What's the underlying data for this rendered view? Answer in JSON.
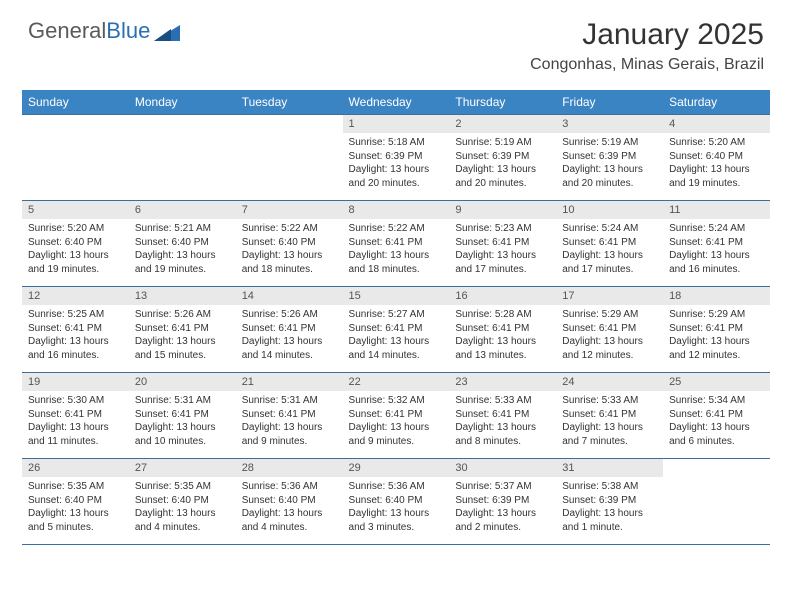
{
  "logo": {
    "text1": "General",
    "text2": "Blue"
  },
  "title": "January 2025",
  "location": "Congonhas, Minas Gerais, Brazil",
  "header_bg": "#3b84c4",
  "header_fg": "#ffffff",
  "daynum_bg": "#e9e9e9",
  "border_color": "#3b6e9a",
  "weekdays": [
    "Sunday",
    "Monday",
    "Tuesday",
    "Wednesday",
    "Thursday",
    "Friday",
    "Saturday"
  ],
  "weeks": [
    [
      {
        "n": "",
        "sr": "",
        "ss": "",
        "dl": ""
      },
      {
        "n": "",
        "sr": "",
        "ss": "",
        "dl": ""
      },
      {
        "n": "",
        "sr": "",
        "ss": "",
        "dl": ""
      },
      {
        "n": "1",
        "sr": "Sunrise: 5:18 AM",
        "ss": "Sunset: 6:39 PM",
        "dl": "Daylight: 13 hours and 20 minutes."
      },
      {
        "n": "2",
        "sr": "Sunrise: 5:19 AM",
        "ss": "Sunset: 6:39 PM",
        "dl": "Daylight: 13 hours and 20 minutes."
      },
      {
        "n": "3",
        "sr": "Sunrise: 5:19 AM",
        "ss": "Sunset: 6:39 PM",
        "dl": "Daylight: 13 hours and 20 minutes."
      },
      {
        "n": "4",
        "sr": "Sunrise: 5:20 AM",
        "ss": "Sunset: 6:40 PM",
        "dl": "Daylight: 13 hours and 19 minutes."
      }
    ],
    [
      {
        "n": "5",
        "sr": "Sunrise: 5:20 AM",
        "ss": "Sunset: 6:40 PM",
        "dl": "Daylight: 13 hours and 19 minutes."
      },
      {
        "n": "6",
        "sr": "Sunrise: 5:21 AM",
        "ss": "Sunset: 6:40 PM",
        "dl": "Daylight: 13 hours and 19 minutes."
      },
      {
        "n": "7",
        "sr": "Sunrise: 5:22 AM",
        "ss": "Sunset: 6:40 PM",
        "dl": "Daylight: 13 hours and 18 minutes."
      },
      {
        "n": "8",
        "sr": "Sunrise: 5:22 AM",
        "ss": "Sunset: 6:41 PM",
        "dl": "Daylight: 13 hours and 18 minutes."
      },
      {
        "n": "9",
        "sr": "Sunrise: 5:23 AM",
        "ss": "Sunset: 6:41 PM",
        "dl": "Daylight: 13 hours and 17 minutes."
      },
      {
        "n": "10",
        "sr": "Sunrise: 5:24 AM",
        "ss": "Sunset: 6:41 PM",
        "dl": "Daylight: 13 hours and 17 minutes."
      },
      {
        "n": "11",
        "sr": "Sunrise: 5:24 AM",
        "ss": "Sunset: 6:41 PM",
        "dl": "Daylight: 13 hours and 16 minutes."
      }
    ],
    [
      {
        "n": "12",
        "sr": "Sunrise: 5:25 AM",
        "ss": "Sunset: 6:41 PM",
        "dl": "Daylight: 13 hours and 16 minutes."
      },
      {
        "n": "13",
        "sr": "Sunrise: 5:26 AM",
        "ss": "Sunset: 6:41 PM",
        "dl": "Daylight: 13 hours and 15 minutes."
      },
      {
        "n": "14",
        "sr": "Sunrise: 5:26 AM",
        "ss": "Sunset: 6:41 PM",
        "dl": "Daylight: 13 hours and 14 minutes."
      },
      {
        "n": "15",
        "sr": "Sunrise: 5:27 AM",
        "ss": "Sunset: 6:41 PM",
        "dl": "Daylight: 13 hours and 14 minutes."
      },
      {
        "n": "16",
        "sr": "Sunrise: 5:28 AM",
        "ss": "Sunset: 6:41 PM",
        "dl": "Daylight: 13 hours and 13 minutes."
      },
      {
        "n": "17",
        "sr": "Sunrise: 5:29 AM",
        "ss": "Sunset: 6:41 PM",
        "dl": "Daylight: 13 hours and 12 minutes."
      },
      {
        "n": "18",
        "sr": "Sunrise: 5:29 AM",
        "ss": "Sunset: 6:41 PM",
        "dl": "Daylight: 13 hours and 12 minutes."
      }
    ],
    [
      {
        "n": "19",
        "sr": "Sunrise: 5:30 AM",
        "ss": "Sunset: 6:41 PM",
        "dl": "Daylight: 13 hours and 11 minutes."
      },
      {
        "n": "20",
        "sr": "Sunrise: 5:31 AM",
        "ss": "Sunset: 6:41 PM",
        "dl": "Daylight: 13 hours and 10 minutes."
      },
      {
        "n": "21",
        "sr": "Sunrise: 5:31 AM",
        "ss": "Sunset: 6:41 PM",
        "dl": "Daylight: 13 hours and 9 minutes."
      },
      {
        "n": "22",
        "sr": "Sunrise: 5:32 AM",
        "ss": "Sunset: 6:41 PM",
        "dl": "Daylight: 13 hours and 9 minutes."
      },
      {
        "n": "23",
        "sr": "Sunrise: 5:33 AM",
        "ss": "Sunset: 6:41 PM",
        "dl": "Daylight: 13 hours and 8 minutes."
      },
      {
        "n": "24",
        "sr": "Sunrise: 5:33 AM",
        "ss": "Sunset: 6:41 PM",
        "dl": "Daylight: 13 hours and 7 minutes."
      },
      {
        "n": "25",
        "sr": "Sunrise: 5:34 AM",
        "ss": "Sunset: 6:41 PM",
        "dl": "Daylight: 13 hours and 6 minutes."
      }
    ],
    [
      {
        "n": "26",
        "sr": "Sunrise: 5:35 AM",
        "ss": "Sunset: 6:40 PM",
        "dl": "Daylight: 13 hours and 5 minutes."
      },
      {
        "n": "27",
        "sr": "Sunrise: 5:35 AM",
        "ss": "Sunset: 6:40 PM",
        "dl": "Daylight: 13 hours and 4 minutes."
      },
      {
        "n": "28",
        "sr": "Sunrise: 5:36 AM",
        "ss": "Sunset: 6:40 PM",
        "dl": "Daylight: 13 hours and 4 minutes."
      },
      {
        "n": "29",
        "sr": "Sunrise: 5:36 AM",
        "ss": "Sunset: 6:40 PM",
        "dl": "Daylight: 13 hours and 3 minutes."
      },
      {
        "n": "30",
        "sr": "Sunrise: 5:37 AM",
        "ss": "Sunset: 6:39 PM",
        "dl": "Daylight: 13 hours and 2 minutes."
      },
      {
        "n": "31",
        "sr": "Sunrise: 5:38 AM",
        "ss": "Sunset: 6:39 PM",
        "dl": "Daylight: 13 hours and 1 minute."
      },
      {
        "n": "",
        "sr": "",
        "ss": "",
        "dl": ""
      }
    ]
  ]
}
